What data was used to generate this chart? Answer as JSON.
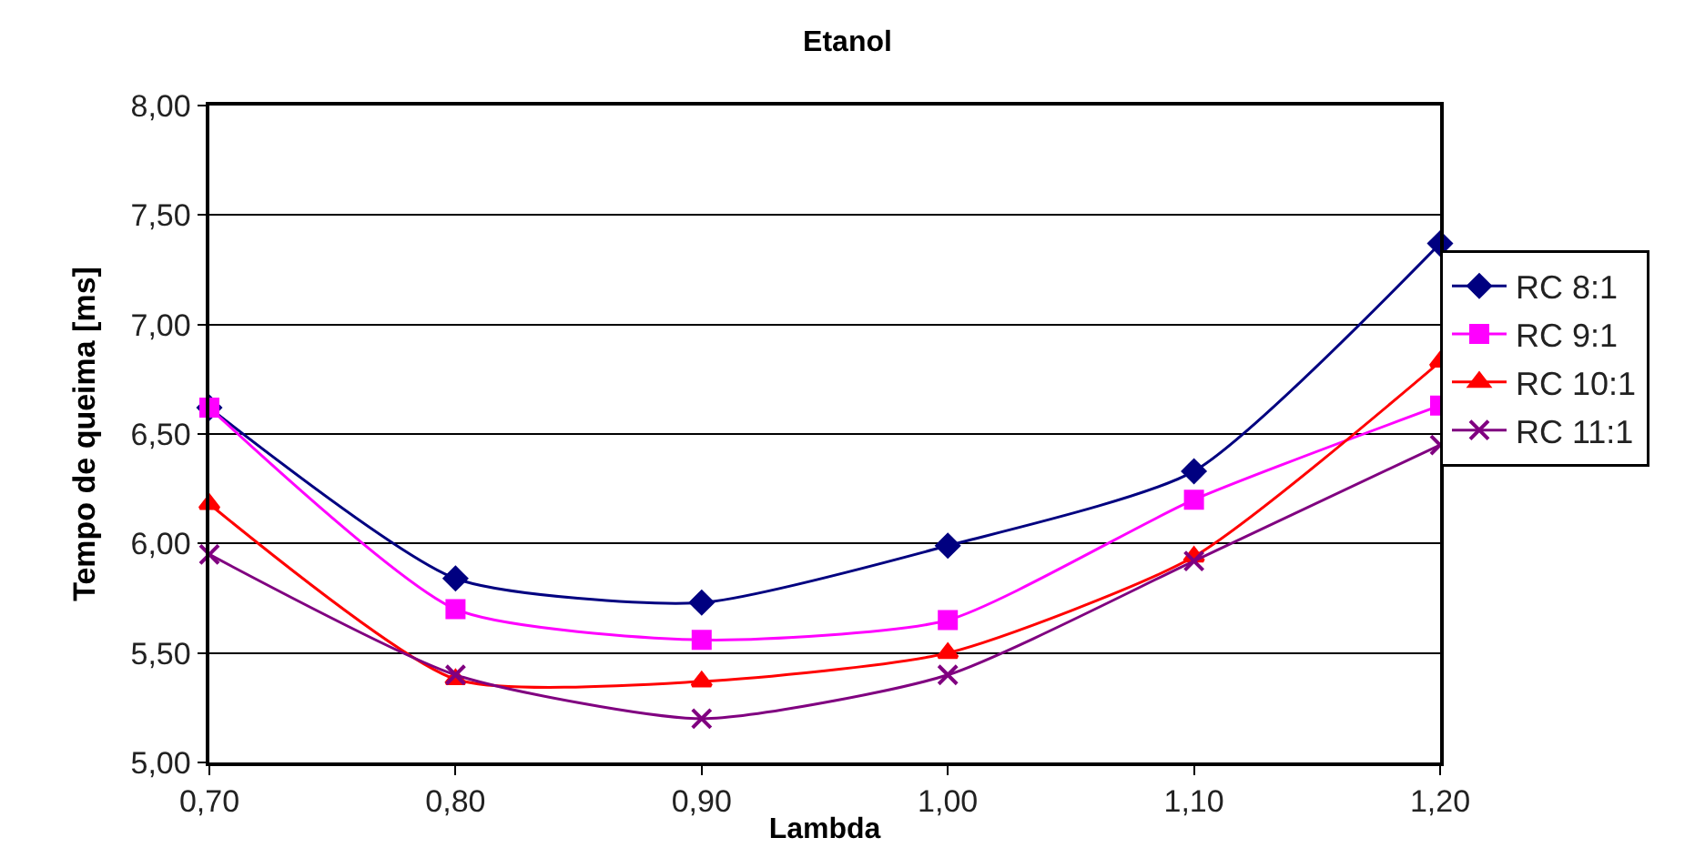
{
  "chart_data": {
    "type": "line",
    "title": "Etanol",
    "xlabel": "Lambda",
    "ylabel": "Tempo de queima [ms]",
    "x": [
      0.7,
      0.8,
      0.9,
      1.0,
      1.1,
      1.2
    ],
    "series": [
      {
        "name": "RC 8:1",
        "color": "#000080",
        "marker": "diamond",
        "values": [
          6.62,
          5.84,
          5.73,
          5.99,
          6.33,
          7.37
        ]
      },
      {
        "name": "RC 9:1",
        "color": "#ff00ff",
        "marker": "square",
        "values": [
          6.62,
          5.7,
          5.56,
          5.65,
          6.2,
          6.63
        ]
      },
      {
        "name": "RC 10:1",
        "color": "#ff0000",
        "marker": "triangle",
        "values": [
          6.18,
          5.38,
          5.37,
          5.5,
          5.94,
          6.83
        ]
      },
      {
        "name": "RC 11:1",
        "color": "#800080",
        "marker": "cross",
        "values": [
          5.95,
          5.4,
          5.2,
          5.4,
          5.92,
          6.45
        ]
      }
    ],
    "xlim": [
      0.7,
      1.2
    ],
    "xticks": [
      {
        "value": 0.7,
        "label": "0,70"
      },
      {
        "value": 0.8,
        "label": "0,80"
      },
      {
        "value": 0.9,
        "label": "0,90"
      },
      {
        "value": 1.0,
        "label": "1,00"
      },
      {
        "value": 1.1,
        "label": "1,10"
      },
      {
        "value": 1.2,
        "label": "1,20"
      }
    ],
    "ylim": [
      5,
      8
    ],
    "yticks": [
      {
        "value": 5,
        "label": "5,00"
      },
      {
        "value": 5.5,
        "label": "5,50"
      },
      {
        "value": 6,
        "label": "6,00"
      },
      {
        "value": 6.5,
        "label": "6,50"
      },
      {
        "value": 7,
        "label": "7,00"
      },
      {
        "value": 7.5,
        "label": "7,50"
      },
      {
        "value": 8,
        "label": "8,00"
      }
    ],
    "grid": "y",
    "legend": "right",
    "line_style": "solid"
  }
}
